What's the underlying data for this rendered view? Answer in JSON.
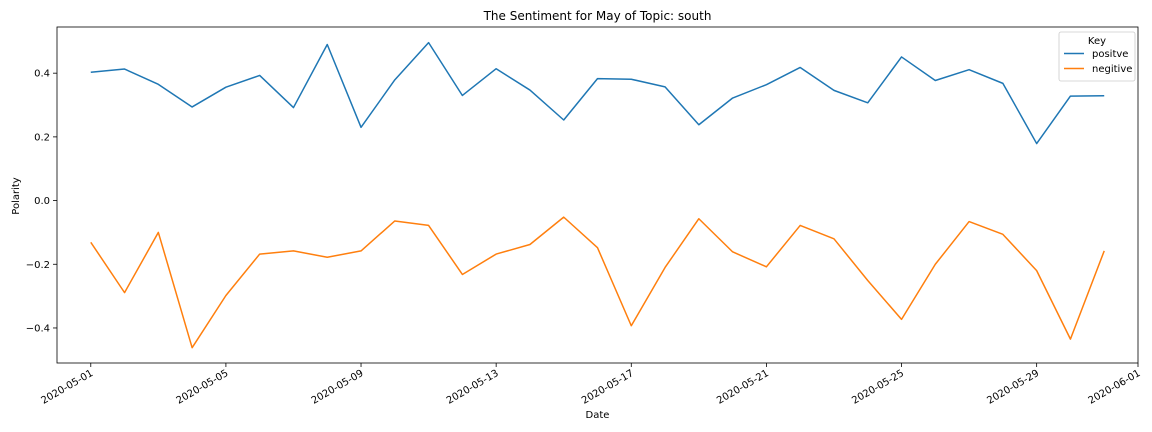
{
  "chart_data": {
    "type": "line",
    "title": "The Sentiment for May of Topic: south",
    "xlabel": "Date",
    "ylabel": "Polarity",
    "x": [
      "2020-05-01",
      "2020-05-02",
      "2020-05-03",
      "2020-05-04",
      "2020-05-05",
      "2020-05-06",
      "2020-05-07",
      "2020-05-08",
      "2020-05-09",
      "2020-05-10",
      "2020-05-11",
      "2020-05-12",
      "2020-05-13",
      "2020-05-14",
      "2020-05-15",
      "2020-05-16",
      "2020-05-17",
      "2020-05-18",
      "2020-05-19",
      "2020-05-20",
      "2020-05-21",
      "2020-05-22",
      "2020-05-23",
      "2020-05-24",
      "2020-05-25",
      "2020-05-26",
      "2020-05-27",
      "2020-05-28",
      "2020-05-29",
      "2020-05-30",
      "2020-05-31"
    ],
    "xlim": [
      "2020-04-30",
      "2020-06-01"
    ],
    "xticks": [
      "2020-05-01",
      "2020-05-05",
      "2020-05-09",
      "2020-05-13",
      "2020-05-17",
      "2020-05-21",
      "2020-05-25",
      "2020-05-29",
      "2020-06-01"
    ],
    "ylim": [
      -0.51,
      0.545
    ],
    "yticks": [
      0.4,
      0.2,
      0.0,
      -0.2,
      -0.4
    ],
    "ytick_labels": [
      "0.4",
      "0.2",
      "0.0",
      "−0.2",
      "−0.4"
    ],
    "grid": false,
    "legend": {
      "title": "Key",
      "position": "top-right"
    },
    "series": [
      {
        "name": "positve",
        "color": "#1f77b4",
        "values": [
          0.403,
          0.413,
          0.365,
          0.294,
          0.356,
          0.393,
          0.292,
          0.49,
          0.23,
          0.379,
          0.496,
          0.33,
          0.414,
          0.347,
          0.253,
          0.383,
          0.381,
          0.357,
          0.238,
          0.322,
          0.364,
          0.418,
          0.346,
          0.307,
          0.451,
          0.377,
          0.411,
          0.368,
          0.179,
          0.328,
          0.329
        ]
      },
      {
        "name": "negitive",
        "color": "#ff7f0e",
        "values": [
          -0.131,
          -0.289,
          -0.1,
          -0.462,
          -0.298,
          -0.168,
          -0.158,
          -0.178,
          -0.158,
          -0.064,
          -0.078,
          -0.232,
          -0.168,
          -0.138,
          -0.052,
          -0.148,
          -0.393,
          -0.21,
          -0.057,
          -0.161,
          -0.208,
          -0.078,
          -0.12,
          -0.251,
          -0.373,
          -0.2,
          -0.066,
          -0.106,
          -0.22,
          -0.435,
          -0.158
        ]
      }
    ]
  }
}
